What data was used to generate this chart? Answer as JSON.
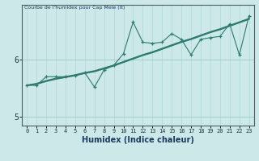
{
  "title": "Courbe de l'humidex pour Cap Mele (It)",
  "xlabel": "Humidex (Indice chaleur)",
  "bg_color": "#cce8e8",
  "line_color": "#2d7a6e",
  "grid_color_v": "#b0d8d4",
  "grid_color_h": "#9fcfcb",
  "x_data": [
    0,
    1,
    2,
    3,
    4,
    5,
    6,
    7,
    8,
    9,
    10,
    11,
    12,
    13,
    14,
    15,
    16,
    17,
    18,
    19,
    20,
    21,
    22,
    23
  ],
  "y_jagged": [
    5.55,
    5.55,
    5.7,
    5.7,
    5.7,
    5.72,
    5.77,
    5.52,
    5.82,
    5.9,
    6.1,
    6.65,
    6.3,
    6.28,
    6.3,
    6.45,
    6.35,
    6.08,
    6.35,
    6.38,
    6.4,
    6.62,
    6.08,
    6.76
  ],
  "y_smooth1": [
    5.55,
    5.57,
    5.62,
    5.66,
    5.69,
    5.72,
    5.76,
    5.79,
    5.84,
    5.89,
    5.95,
    6.01,
    6.07,
    6.12,
    6.18,
    6.24,
    6.3,
    6.35,
    6.41,
    6.47,
    6.52,
    6.58,
    6.64,
    6.7
  ],
  "y_smooth2": [
    5.55,
    5.58,
    5.63,
    5.67,
    5.7,
    5.73,
    5.77,
    5.8,
    5.85,
    5.9,
    5.96,
    6.02,
    6.08,
    6.13,
    6.19,
    6.25,
    6.31,
    6.36,
    6.42,
    6.48,
    6.53,
    6.59,
    6.65,
    6.71
  ],
  "ylim": [
    4.85,
    6.95
  ],
  "yticks": [
    5,
    6
  ],
  "xlim": [
    -0.5,
    23.5
  ],
  "xticks": [
    0,
    1,
    2,
    3,
    4,
    5,
    6,
    7,
    8,
    9,
    10,
    11,
    12,
    13,
    14,
    15,
    16,
    17,
    18,
    19,
    20,
    21,
    22,
    23
  ]
}
